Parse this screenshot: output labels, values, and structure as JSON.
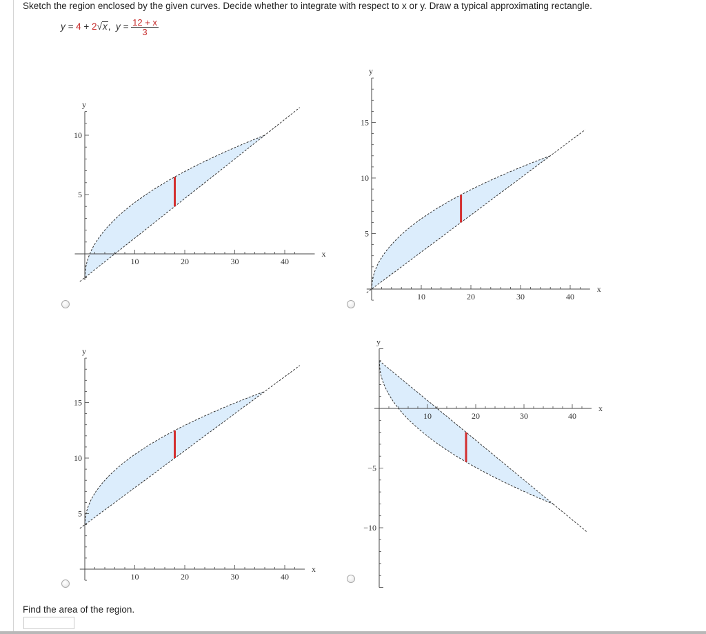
{
  "question": {
    "instructions": "Sketch the region enclosed by the given curves. Decide whether to integrate with respect to x or y. Draw a typical approximating rectangle.",
    "formula": {
      "y1_lhs": "y = ",
      "y1_a": "4",
      "y1_plus": " + ",
      "y1_b": "2",
      "y1_radicand": "x",
      "sep": ",",
      "y2_lhs": "y = ",
      "y2_num": "12 + x",
      "y2_den": "3"
    },
    "find_label": "Find the area of the region.",
    "answer_value": ""
  },
  "options": [
    {
      "id": "a",
      "axes": {
        "x_label": "x",
        "y_label": "y",
        "x_ticks": [
          "10",
          "20",
          "30",
          "40"
        ],
        "y_ticks": [
          "5",
          "10"
        ],
        "xlim": [
          -2,
          46
        ],
        "ylim": [
          -2.2,
          12
        ]
      },
      "upper_curve": "4 + 2√x",
      "lower_curve": "(12 + x)/3",
      "shift": -6,
      "rect_x": 18
    },
    {
      "id": "b",
      "axes": {
        "x_label": "x",
        "y_label": "y",
        "x_ticks": [
          "10",
          "20",
          "30",
          "40"
        ],
        "y_ticks": [
          "5",
          "10",
          "15"
        ],
        "xlim": [
          -1,
          44
        ],
        "ylim": [
          -1,
          19
        ]
      },
      "upper_curve": "4 + 2√x",
      "lower_curve": "(12 + x)/3",
      "shift": -4,
      "rect_x": 18
    },
    {
      "id": "c",
      "axes": {
        "x_label": "x",
        "y_label": "y",
        "x_ticks": [
          "10",
          "20",
          "30",
          "40"
        ],
        "y_ticks": [
          "5",
          "10",
          "15"
        ],
        "xlim": [
          -1,
          44
        ],
        "ylim": [
          -1,
          19
        ]
      },
      "upper_curve": "4 + 2√x",
      "lower_curve": "(12 + x)/3",
      "shift": 0,
      "rect_x": 18
    },
    {
      "id": "d",
      "axes": {
        "x_label": "x",
        "y_label": "y",
        "x_ticks": [
          "10",
          "20",
          "30",
          "40"
        ],
        "y_ticks": [
          "-5",
          "-10"
        ],
        "xlim": [
          -1,
          44
        ],
        "ylim": [
          -15,
          5
        ]
      },
      "upper_curve": "-(12 + x)/3 + 8",
      "lower_curve": "-(4 + 2√x) + 8",
      "shift": 0,
      "rect_x": 18
    }
  ],
  "colors": {
    "region_fill": "#dcedfc",
    "curve_stroke": "#333333",
    "rect_stroke": "#d32f2f",
    "axis_stroke": "#444444"
  }
}
